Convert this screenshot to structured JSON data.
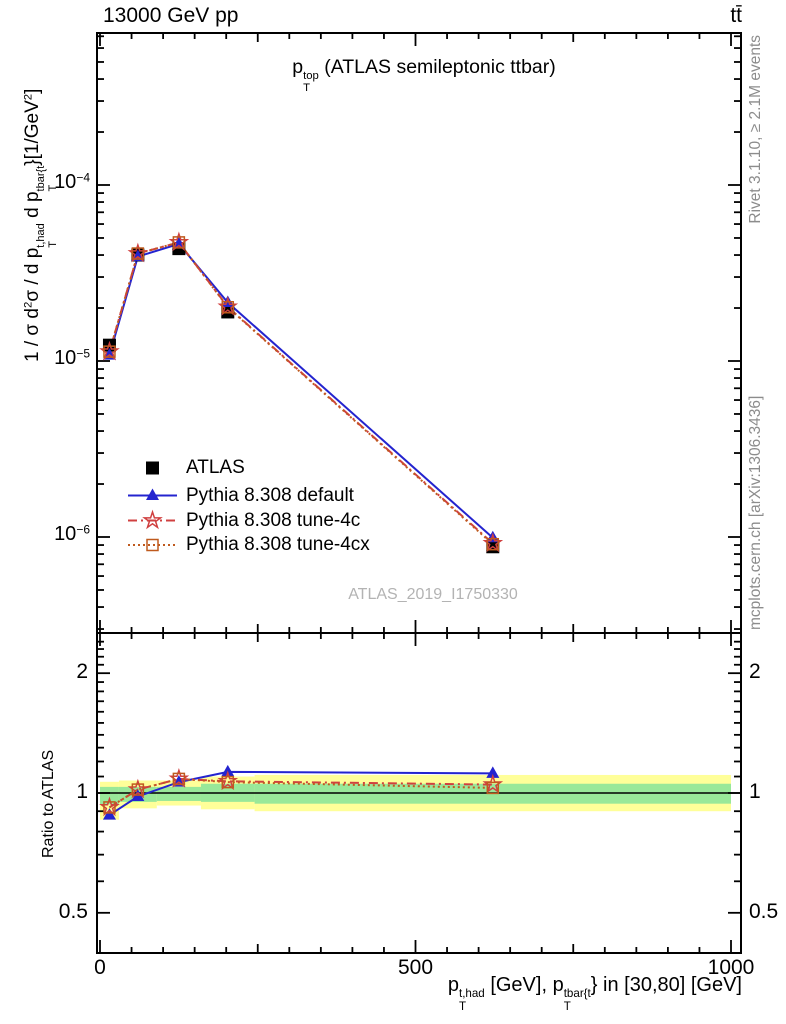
{
  "header": {
    "left": "13000 GeV pp",
    "right": "tt̄"
  },
  "plot": {
    "title_segments": [
      {
        "t": "p"
      },
      {
        "stack": {
          "up": "top",
          "dn": "T"
        }
      },
      {
        "t": " (ATLAS semileptonic ttbar)"
      }
    ],
    "watermark": "ATLAS_2019_I1750330",
    "side_text_top": "Rivet 3.1.10, ≥ 2.1M events",
    "side_text_bottom": "mcplots.cern.ch [arXiv:1306.3436]"
  },
  "axes": {
    "ylabel_segments": [
      {
        "t": "1 / σ d"
      },
      {
        "sup": "2"
      },
      {
        "t": "σ / d p"
      },
      {
        "stack": {
          "up": "t,had",
          "dn": "T"
        }
      },
      {
        "t": " d p"
      },
      {
        "stack": {
          "up": "tbar{t",
          "dn": "T"
        }
      },
      {
        "t": "}[1/GeV"
      },
      {
        "sup": "2"
      },
      {
        "t": "]"
      }
    ],
    "xlabel_segments": [
      {
        "t": "p"
      },
      {
        "stack": {
          "up": "t,had",
          "dn": "T"
        }
      },
      {
        "t": " [GeV], p"
      },
      {
        "stack": {
          "up": "tbar{t",
          "dn": "T"
        }
      },
      {
        "t": "} in [30,80] [GeV]"
      }
    ],
    "ratio_ylabel": "Ratio to ATLAS",
    "x_ticks": [
      {
        "label": "0",
        "value": 0
      },
      {
        "label": "500",
        "value": 500
      },
      {
        "label": "1000",
        "value": 1000
      }
    ],
    "main_y_ticks": [
      {
        "base": "10",
        "exp": "−4",
        "value": 0.0001
      },
      {
        "base": "10",
        "exp": "−5",
        "value": 1e-05
      },
      {
        "base": "10",
        "exp": "−6",
        "value": 1e-06
      }
    ],
    "ratio_y_ticks": [
      {
        "label": "2",
        "value": 2
      },
      {
        "label": "1",
        "value": 1
      },
      {
        "label": "0.5",
        "value": 0.5
      }
    ]
  },
  "colors": {
    "atlas": "#000000",
    "pythia_default": "#2424cf",
    "pythia_4c": "#d04040",
    "pythia_4cx": "#bf5a1e",
    "band_yellow": "#ffff99",
    "band_green": "#99e899",
    "frame": "#000000",
    "gray_text": "#8c8c8c",
    "watermark": "#b3b3b3"
  },
  "chart_data": {
    "type": "line",
    "title": "pT^top (ATLAS semileptonic ttbar)",
    "xlabel": "pT^{t,had} [GeV], pT^{tbar{t}} in [30,80] [GeV]",
    "ylabel": "1/sigma d2sigma / d pT^{t,had} d pT^{tbar{t}} [1/GeV^2]",
    "x_unit": "GeV",
    "xlim": [
      0,
      1016
    ],
    "main_ylog": true,
    "main_ylim": [
      2.9e-07,
      0.00072
    ],
    "ratio_ylog": true,
    "ratio_ylim": [
      0.396,
      2.52
    ],
    "legend_position": "middle-left",
    "grid": false,
    "bin_edges": [
      0,
      30,
      90,
      160,
      245,
      1000
    ],
    "x_mid": [
      15,
      60,
      125,
      202.5,
      622.5
    ],
    "series": [
      {
        "name": "ATLAS",
        "color_key": "atlas",
        "marker": "square_filled",
        "line": "none",
        "values": [
          1.23e-05,
          4e-05,
          4.35e-05,
          1.9e-05,
          8.8e-07
        ],
        "ratio": [
          1,
          1,
          1,
          1,
          1
        ]
      },
      {
        "name": "Pythia 8.308 default",
        "color_key": "pythia_default",
        "marker": "triangle_filled",
        "line": "solid",
        "values": [
          1.08e-05,
          3.92e-05,
          4.63e-05,
          2.15e-05,
          9.9e-07
        ],
        "ratio": [
          0.88,
          0.98,
          1.065,
          1.13,
          1.12
        ]
      },
      {
        "name": "Pythia 8.308 tune-4c",
        "color_key": "pythia_4c",
        "marker": "star_open",
        "line": "dashdot",
        "values": [
          1.13e-05,
          4.08e-05,
          4.72e-05,
          2.03e-05,
          9.2e-07
        ],
        "ratio": [
          0.92,
          1.02,
          1.085,
          1.07,
          1.05
        ]
      },
      {
        "name": "Pythia 8.308 tune-4cx",
        "color_key": "pythia_4cx",
        "marker": "square_open",
        "line": "dotted",
        "values": [
          1.13e-05,
          4.08e-05,
          4.72e-05,
          2.02e-05,
          9.1e-07
        ],
        "ratio": [
          0.92,
          1.02,
          1.085,
          1.065,
          1.03
        ]
      }
    ],
    "ratio_bands": [
      {
        "x": [
          0,
          30
        ],
        "yellow": [
          0.857,
          1.067
        ],
        "green": [
          0.937,
          1.036
        ]
      },
      {
        "x": [
          30,
          90
        ],
        "yellow": [
          0.915,
          1.075
        ],
        "green": [
          0.95,
          1.036
        ]
      },
      {
        "x": [
          90,
          160
        ],
        "yellow": [
          0.93,
          1.075
        ],
        "green": [
          0.955,
          1.036
        ]
      },
      {
        "x": [
          160,
          245
        ],
        "yellow": [
          0.91,
          1.1
        ],
        "green": [
          0.95,
          1.055
        ]
      },
      {
        "x": [
          245,
          1000
        ],
        "yellow": [
          0.9,
          1.11
        ],
        "green": [
          0.94,
          1.055
        ]
      }
    ]
  }
}
